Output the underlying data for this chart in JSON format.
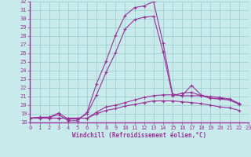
{
  "xlabel": "Windchill (Refroidissement éolien,°C)",
  "background_color": "#c8eaea",
  "grid_color": "#99cccc",
  "line_color": "#993399",
  "axis_color": "#993399",
  "xlim": [
    0,
    23
  ],
  "ylim": [
    18,
    32
  ],
  "xticks": [
    0,
    1,
    2,
    3,
    4,
    5,
    6,
    7,
    8,
    9,
    10,
    11,
    12,
    13,
    14,
    15,
    16,
    17,
    18,
    19,
    20,
    21,
    22,
    23
  ],
  "yticks": [
    18,
    19,
    20,
    21,
    22,
    23,
    24,
    25,
    26,
    27,
    28,
    29,
    30,
    31,
    32
  ],
  "curves": [
    {
      "x": [
        0,
        1,
        2,
        3,
        4,
        5,
        6,
        7,
        8,
        9,
        10,
        11,
        12,
        13,
        14,
        15,
        16,
        17,
        18,
        19,
        20,
        21,
        22
      ],
      "y": [
        18.5,
        18.6,
        18.6,
        18.9,
        18.2,
        18.2,
        19.2,
        22.5,
        25.1,
        28.1,
        30.4,
        31.3,
        31.5,
        32.0,
        27.2,
        21.3,
        21.1,
        22.3,
        21.2,
        20.8,
        20.8,
        20.7,
        20.2
      ]
    },
    {
      "x": [
        0,
        1,
        2,
        3,
        4,
        5,
        6,
        7,
        8,
        9,
        10,
        11,
        12,
        13,
        14,
        15,
        16,
        17,
        18,
        19,
        20,
        21,
        22
      ],
      "y": [
        18.5,
        18.6,
        18.6,
        19.1,
        18.4,
        18.4,
        19.0,
        21.2,
        23.8,
        26.1,
        28.8,
        29.9,
        30.2,
        30.3,
        26.2,
        21.1,
        21.4,
        21.5,
        21.1,
        20.8,
        20.7,
        20.6,
        20.1
      ]
    },
    {
      "x": [
        0,
        1,
        2,
        3,
        4,
        5,
        6,
        7,
        8,
        9,
        10,
        11,
        12,
        13,
        14,
        15,
        16,
        17,
        18,
        19,
        20,
        21,
        22
      ],
      "y": [
        18.5,
        18.5,
        18.5,
        18.5,
        18.5,
        18.5,
        18.5,
        19.2,
        19.8,
        20.0,
        20.3,
        20.6,
        20.9,
        21.1,
        21.2,
        21.2,
        21.1,
        21.1,
        21.1,
        21.0,
        20.9,
        20.7,
        20.2
      ]
    },
    {
      "x": [
        0,
        1,
        2,
        3,
        4,
        5,
        6,
        7,
        8,
        9,
        10,
        11,
        12,
        13,
        14,
        15,
        16,
        17,
        18,
        19,
        20,
        21,
        22
      ],
      "y": [
        18.5,
        18.5,
        18.5,
        18.5,
        18.5,
        18.5,
        18.5,
        19.0,
        19.4,
        19.6,
        19.9,
        20.1,
        20.3,
        20.5,
        20.5,
        20.5,
        20.4,
        20.3,
        20.2,
        20.0,
        19.8,
        19.7,
        19.4
      ]
    }
  ]
}
